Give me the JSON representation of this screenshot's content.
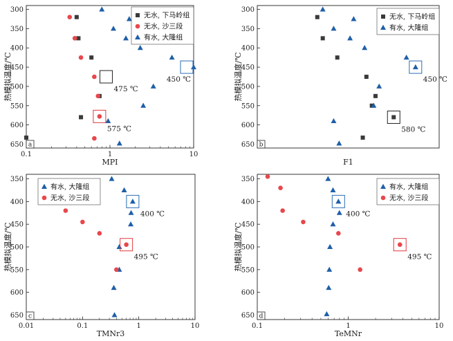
{
  "palette": {
    "black": "#3a3a3a",
    "red": "#e8474b",
    "blue": "#1f5fa8",
    "annot_black": "#222222",
    "annot_red": "#e03a3e",
    "annot_blue": "#2a6db5"
  },
  "chart_data": [
    {
      "type": "scatter",
      "panel_tag": "a",
      "xlabel": "MPI",
      "ylabel": "热模拟温度/℃",
      "xscale": "log",
      "xlim": [
        0.1,
        10
      ],
      "ylim": [
        290,
        660
      ],
      "y_inverted": true,
      "x_ticks": [
        0.1,
        1,
        10
      ],
      "x_tick_labels": [
        "0.1",
        "1",
        "10"
      ],
      "y_ticks": [
        300,
        350,
        400,
        450,
        500,
        550,
        600,
        650
      ],
      "legend_position": "top-right",
      "series": [
        {
          "name": "无水, 下马岭组",
          "marker": "square",
          "color": "black",
          "points": [
            [
              0.4,
              320
            ],
            [
              0.42,
              375
            ],
            [
              0.6,
              425
            ],
            [
              0.75,
              525
            ],
            [
              0.45,
              580
            ],
            [
              0.1,
              633
            ]
          ]
        },
        {
          "name": "无水, 沙三段",
          "marker": "circle",
          "color": "red",
          "points": [
            [
              0.33,
              320
            ],
            [
              0.38,
              375
            ],
            [
              0.45,
              425
            ],
            [
              0.65,
              475
            ],
            [
              0.72,
              525
            ],
            [
              0.75,
              578
            ],
            [
              0.65,
              635
            ]
          ]
        },
        {
          "name": "有水, 大隆组",
          "marker": "triangle",
          "color": "blue",
          "points": [
            [
              0.8,
              300
            ],
            [
              1.7,
              325
            ],
            [
              1.1,
              350
            ],
            [
              1.55,
              375
            ],
            [
              2.3,
              400
            ],
            [
              5.5,
              425
            ],
            [
              3.3,
              500
            ],
            [
              2.5,
              550
            ],
            [
              0.95,
              590
            ],
            [
              1.3,
              648
            ],
            [
              10,
              450
            ]
          ]
        }
      ],
      "annotations": [
        {
          "text": "475 ℃",
          "color": "annot_black",
          "x": 0.9,
          "y": 475
        },
        {
          "text": "575 ℃",
          "color": "annot_red",
          "x": 0.75,
          "y": 578
        },
        {
          "text": "450 ℃",
          "color": "annot_blue",
          "x": 10,
          "y": 450
        }
      ]
    },
    {
      "type": "scatter",
      "panel_tag": "b",
      "xlabel": "F1",
      "ylabel": "热模拟温度/℃",
      "xscale": "linear",
      "xlim": [
        0,
        1
      ],
      "ylim": [
        290,
        660
      ],
      "y_inverted": true,
      "x_ticks": [],
      "x_tick_labels": [],
      "y_ticks": [
        300,
        350,
        400,
        450,
        500,
        550,
        600,
        650
      ],
      "legend_position": "top-right",
      "series": [
        {
          "name": "无水, 下马岭组",
          "marker": "square",
          "color": "black",
          "points": [
            [
              0.33,
              320
            ],
            [
              0.36,
              375
            ],
            [
              0.44,
              425
            ],
            [
              0.6,
              475
            ],
            [
              0.65,
              525
            ],
            [
              0.63,
              550
            ],
            [
              0.58,
              633
            ],
            [
              0.75,
              580
            ]
          ]
        },
        {
          "name": "有水, 大隆组",
          "marker": "triangle",
          "color": "blue",
          "points": [
            [
              0.36,
              300
            ],
            [
              0.42,
              350
            ],
            [
              0.53,
              325
            ],
            [
              0.51,
              375
            ],
            [
              0.59,
              400
            ],
            [
              0.82,
              425
            ],
            [
              0.67,
              500
            ],
            [
              0.64,
              550
            ],
            [
              0.42,
              590
            ],
            [
              0.45,
              648
            ],
            [
              0.87,
              450
            ]
          ]
        }
      ],
      "annotations": [
        {
          "text": "450 ℃",
          "color": "annot_blue",
          "x": 0.87,
          "y": 450
        },
        {
          "text": "580 ℃",
          "color": "annot_black",
          "x": 0.75,
          "y": 580
        }
      ]
    },
    {
      "type": "scatter",
      "panel_tag": "c",
      "xlabel": "TMNr3",
      "ylabel": "热模拟温度/℃",
      "xscale": "log",
      "xlim": [
        0.01,
        10
      ],
      "ylim": [
        340,
        660
      ],
      "y_inverted": true,
      "x_ticks": [
        0.01,
        0.1,
        1,
        10
      ],
      "x_tick_labels": [
        "0.01",
        "0.1",
        "1",
        "10"
      ],
      "y_ticks": [
        350,
        400,
        450,
        500,
        550,
        600,
        650
      ],
      "legend_position": "top-left",
      "series": [
        {
          "name": "有水, 大隆组",
          "marker": "triangle",
          "color": "blue",
          "points": [
            [
              0.33,
              350
            ],
            [
              0.55,
              375
            ],
            [
              0.78,
              400
            ],
            [
              0.73,
              425
            ],
            [
              0.72,
              450
            ],
            [
              0.45,
              500
            ],
            [
              0.45,
              550
            ],
            [
              0.36,
              590
            ],
            [
              0.37,
              650
            ]
          ]
        },
        {
          "name": "无水, 沙三段",
          "marker": "circle",
          "color": "red",
          "points": [
            [
              0.05,
              420
            ],
            [
              0.1,
              445
            ],
            [
              0.2,
              470
            ],
            [
              0.6,
              495
            ],
            [
              0.4,
              550
            ]
          ]
        }
      ],
      "annotations": [
        {
          "text": "400 ℃",
          "color": "annot_blue",
          "x": 0.78,
          "y": 400
        },
        {
          "text": "495 ℃",
          "color": "annot_red",
          "x": 0.6,
          "y": 495
        }
      ]
    },
    {
      "type": "scatter",
      "panel_tag": "d",
      "xlabel": "TeMNr",
      "ylabel": "热模拟温度/℃",
      "xscale": "log",
      "xlim": [
        0.1,
        10
      ],
      "ylim": [
        340,
        660
      ],
      "y_inverted": true,
      "x_ticks": [
        0.1,
        1,
        10
      ],
      "x_tick_labels": [
        "0.1",
        "1",
        "10"
      ],
      "y_ticks": [
        350,
        400,
        450,
        500,
        550,
        600,
        650
      ],
      "legend_position": "top-right",
      "series": [
        {
          "name": "有水, 大隆组",
          "marker": "triangle",
          "color": "blue",
          "points": [
            [
              0.6,
              350
            ],
            [
              0.68,
              375
            ],
            [
              0.78,
              400
            ],
            [
              0.8,
              425
            ],
            [
              0.68,
              450
            ],
            [
              0.63,
              500
            ],
            [
              0.62,
              550
            ],
            [
              0.61,
              590
            ],
            [
              0.58,
              648
            ]
          ]
        },
        {
          "name": "无水, 沙三段",
          "marker": "circle",
          "color": "red",
          "points": [
            [
              0.13,
              345
            ],
            [
              0.18,
              370
            ],
            [
              0.19,
              420
            ],
            [
              0.32,
              445
            ],
            [
              0.78,
              470
            ],
            [
              3.7,
              495
            ],
            [
              1.35,
              550
            ]
          ]
        }
      ],
      "annotations": [
        {
          "text": "400 ℃",
          "color": "annot_blue",
          "x": 0.78,
          "y": 400
        },
        {
          "text": "495 ℃",
          "color": "annot_red",
          "x": 3.7,
          "y": 495
        }
      ]
    }
  ]
}
